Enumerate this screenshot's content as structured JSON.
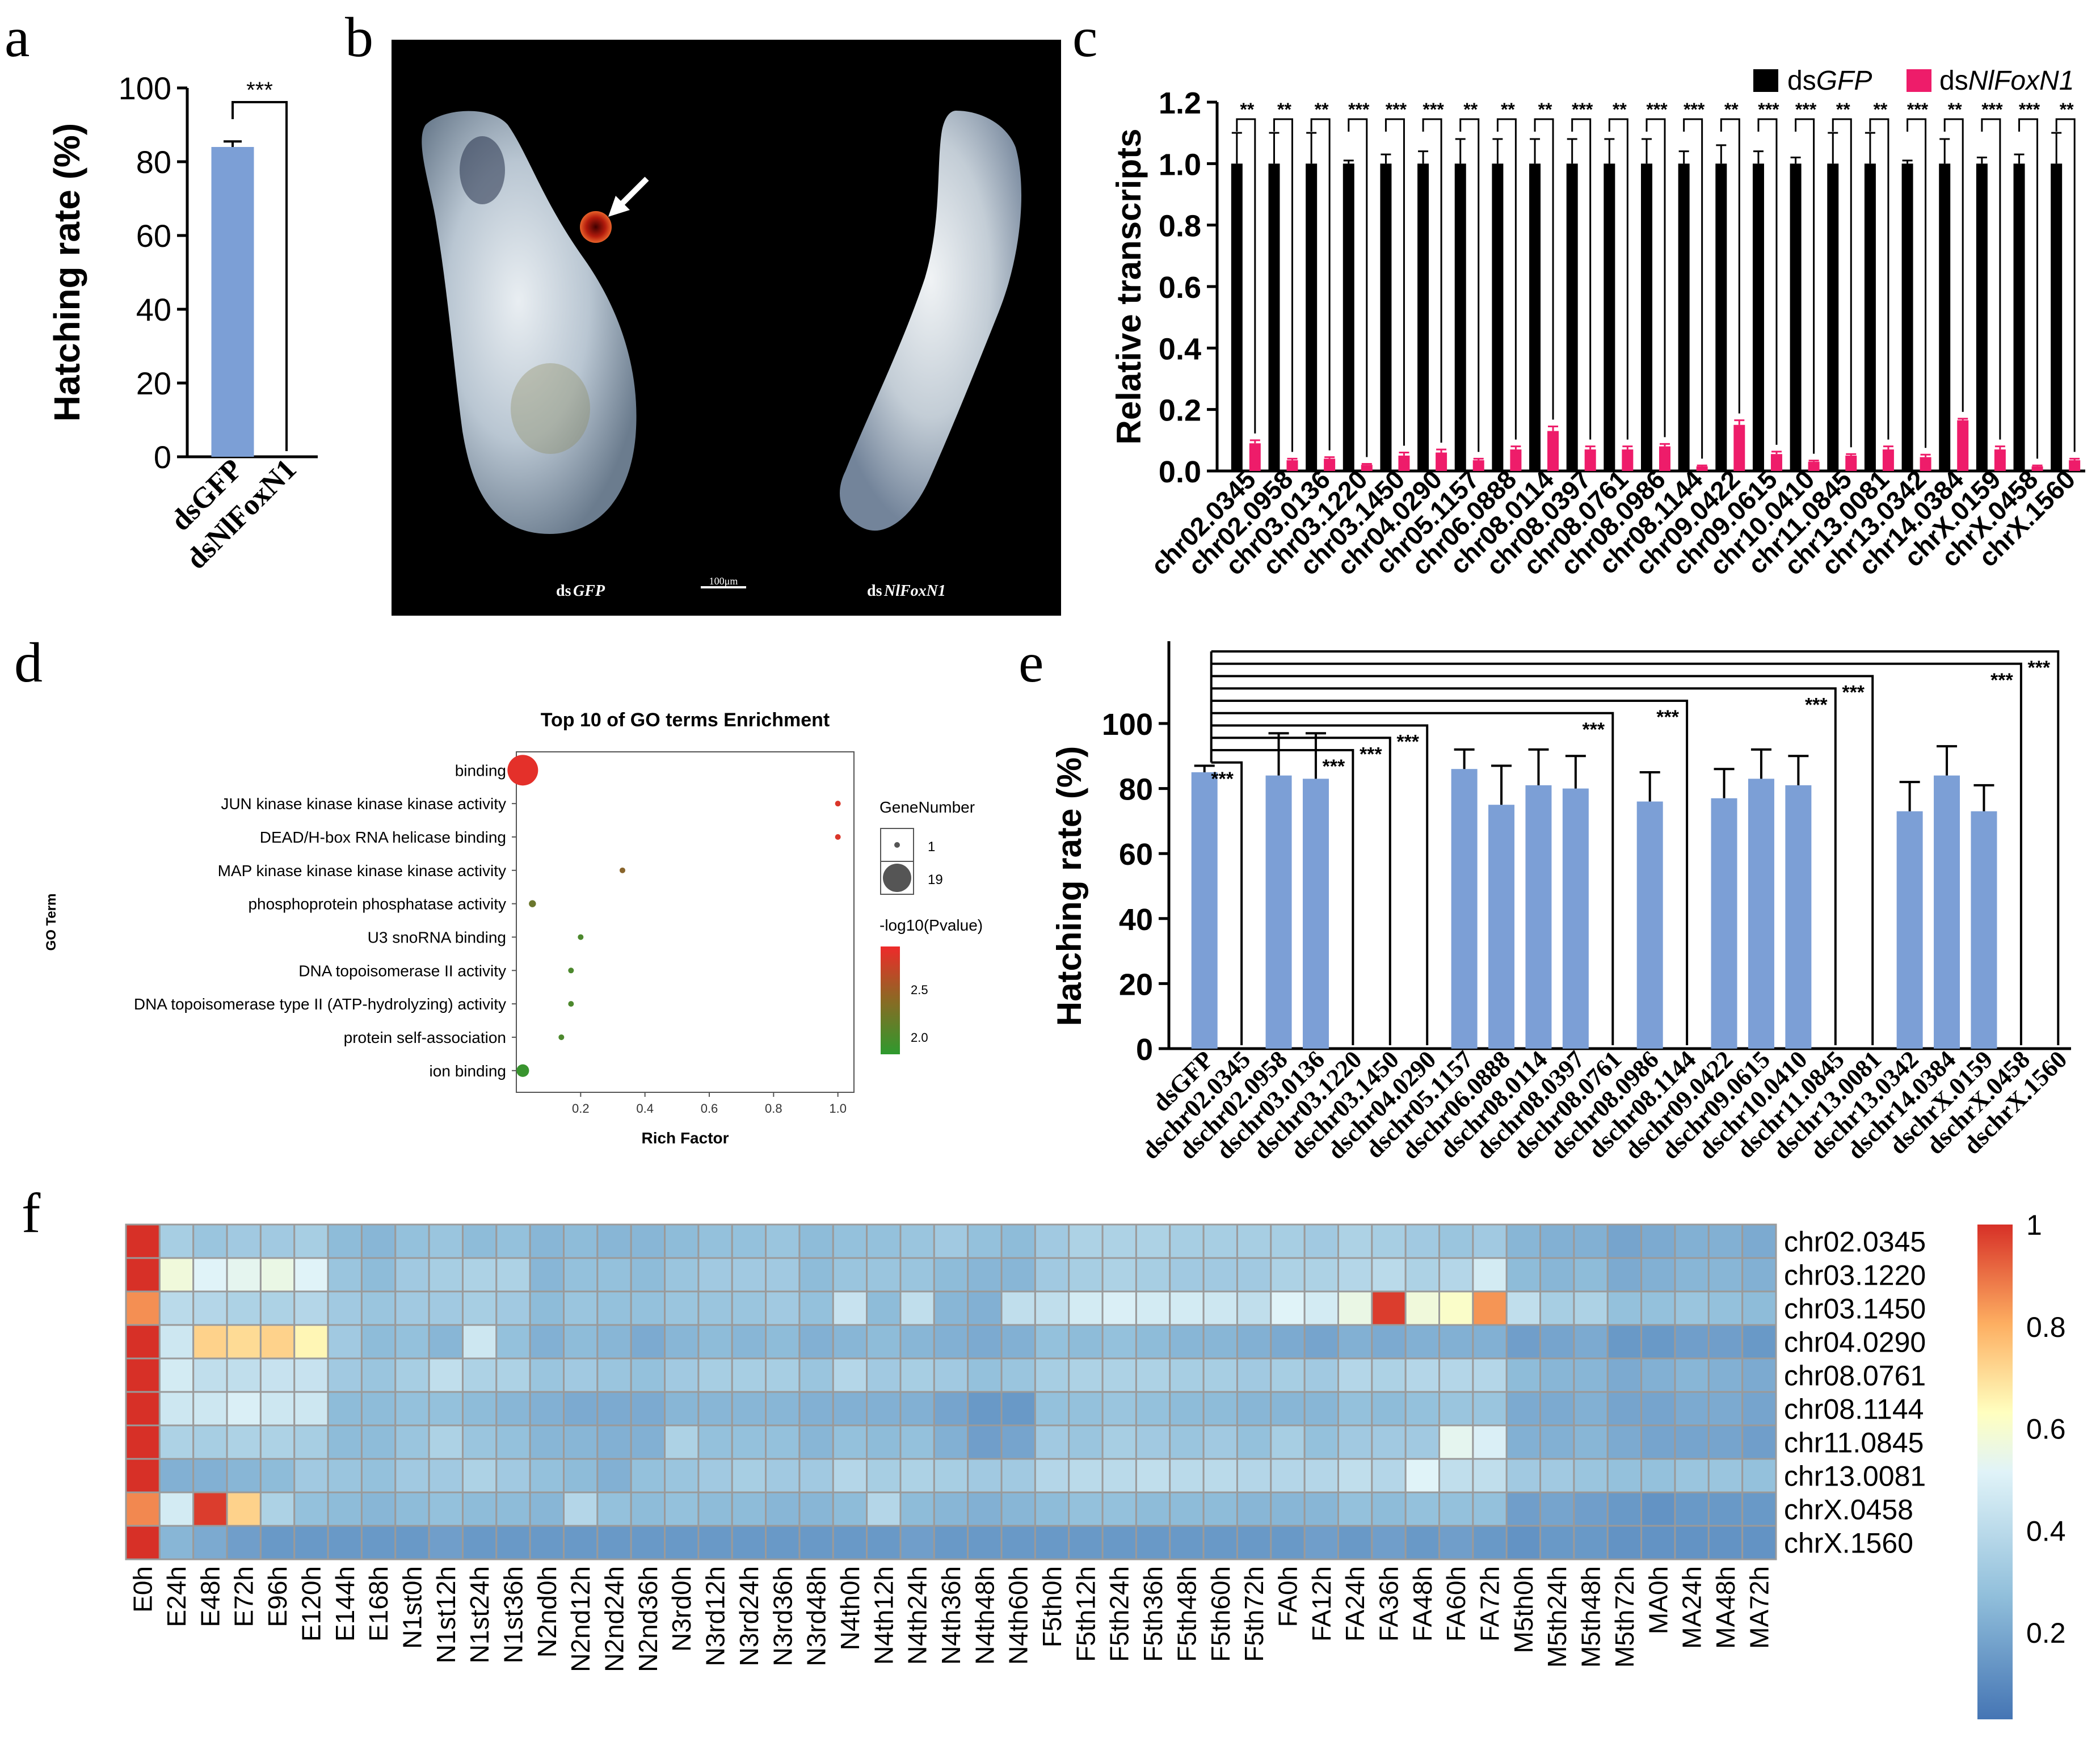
{
  "colors": {
    "bar_blue": "#7c9fd6",
    "black": "#000000",
    "pink": "#ee1c6a",
    "bubble_red": "#ee2a2a",
    "bubble_green": "#2e9a2e",
    "embryo_bg": "#000000",
    "heat_high": "#d73027",
    "heat_mid": "#ffffbf",
    "heat_low": "#4575b4"
  },
  "panel_labels": [
    "a",
    "b",
    "c",
    "d",
    "e",
    "f"
  ],
  "chart_data": [
    {
      "id": "a",
      "type": "bar",
      "categories": [
        "dsGFP",
        "dsNlFoxN1"
      ],
      "values": [
        84,
        0
      ],
      "errors": [
        1.5,
        0
      ],
      "ylabel": "Hatching rate (%)",
      "ylim": [
        0,
        100
      ],
      "yticks": [
        "0",
        "20",
        "40",
        "60",
        "80",
        "100"
      ],
      "significance": "***"
    },
    {
      "id": "b",
      "type": "image",
      "labels": {
        "left": "dsGFP",
        "left_prefix": "ds",
        "left_italic": "GFP",
        "right_prefix": "ds",
        "right_italic": "NlFoxN1",
        "scale": "100μm"
      }
    },
    {
      "id": "c",
      "type": "bar",
      "ylabel": "Relative transcripts",
      "ylim": [
        0,
        1.2
      ],
      "yticks": [
        "0.0",
        "0.2",
        "0.4",
        "0.6",
        "0.8",
        "1.0",
        "1.2"
      ],
      "legend": [
        {
          "prefix": "ds",
          "italic": "GFP"
        },
        {
          "prefix": "ds",
          "italic": "NlFoxN1"
        }
      ],
      "categories": [
        "chr02.0345",
        "chr02.0958",
        "chr03.0136",
        "chr03.1220",
        "chr03.1450",
        "chr04.0290",
        "chr05.1157",
        "chr06.0888",
        "chr08.0114",
        "chr08.0397",
        "chr08.0761",
        "chr08.0986",
        "chr08.1144",
        "chr09.0422",
        "chr09.0615",
        "chr10.0410",
        "chr11.0845",
        "chr13.0081",
        "chr13.0342",
        "chr14.0384",
        "chrX.0159",
        "chrX.0458",
        "chrX.1560"
      ],
      "series": [
        {
          "values": [
            1,
            1,
            1,
            1,
            1,
            1,
            1,
            1,
            1,
            1,
            1,
            1,
            1,
            1,
            1,
            1,
            1,
            1,
            1,
            1,
            1,
            1,
            1
          ],
          "errors": [
            0.1,
            0.1,
            0.1,
            0.01,
            0.03,
            0.04,
            0.08,
            0.08,
            0.08,
            0.08,
            0.08,
            0.08,
            0.04,
            0.06,
            0.04,
            0.02,
            0.1,
            0.1,
            0.01,
            0.08,
            0.02,
            0.03,
            0.1
          ]
        },
        {
          "values": [
            0.09,
            0.035,
            0.04,
            0.02,
            0.05,
            0.06,
            0.035,
            0.07,
            0.13,
            0.07,
            0.07,
            0.08,
            0.015,
            0.15,
            0.055,
            0.03,
            0.05,
            0.07,
            0.045,
            0.165,
            0.07,
            0.015,
            0.035
          ],
          "errors": [
            0.01,
            0.005,
            0.005,
            0.003,
            0.01,
            0.01,
            0.005,
            0.01,
            0.015,
            0.01,
            0.01,
            0.008,
            0.003,
            0.015,
            0.008,
            0.004,
            0.005,
            0.01,
            0.008,
            0.005,
            0.01,
            0.003,
            0.005
          ]
        }
      ],
      "significance": [
        "**",
        "**",
        "**",
        "***",
        "***",
        "***",
        "**",
        "**",
        "**",
        "***",
        "**",
        "***",
        "***",
        "**",
        "***",
        "***",
        "**",
        "**",
        "***",
        "**",
        "***",
        "***",
        "**"
      ]
    },
    {
      "id": "d",
      "type": "scatter",
      "title": "Top 10 of GO terms Enrichment",
      "xlabel": "Rich Factor",
      "ylabel": "GO Term",
      "xlim": [
        0,
        1.05
      ],
      "xticks": [
        "0.2",
        "0.4",
        "0.6",
        "0.8",
        "1.0"
      ],
      "terms": [
        "binding",
        "JUN kinase kinase kinase kinase activity",
        "DEAD/H-box RNA helicase binding",
        "MAP kinase kinase kinase kinase activity",
        "phosphoprotein phosphatase activity",
        "U3 snoRNA binding",
        "DNA topoisomerase II activity",
        "DNA topoisomerase type II (ATP-hydrolyzing) activity",
        "protein self-association",
        "ion binding"
      ],
      "rich_factor": [
        0.02,
        1.0,
        1.0,
        0.33,
        0.05,
        0.2,
        0.17,
        0.17,
        0.14,
        0.02
      ],
      "gene_number": [
        19,
        1,
        1,
        1,
        2,
        1,
        1,
        1,
        1,
        6
      ],
      "neglog10p": [
        2.8,
        2.75,
        2.75,
        2.35,
        2.2,
        2.05,
        2.05,
        2.05,
        2.05,
        1.95
      ],
      "size_legend_title": "GeneNumber",
      "size_legend": [
        "1",
        "19"
      ],
      "color_legend_title": "-log10(Pvalue)",
      "color_legend": [
        "2.5",
        "2.0"
      ]
    },
    {
      "id": "e",
      "type": "bar",
      "ylabel": "Hatching rate (%)",
      "ylim": [
        0,
        100
      ],
      "yticks": [
        "0",
        "20",
        "40",
        "60",
        "80",
        "100"
      ],
      "categories": [
        "dsGFP",
        "dschr02.0345",
        "dschr02.0958",
        "dschr03.0136",
        "dschr03.1220",
        "dschr03.1450",
        "dschr04.0290",
        "dschr05.1157",
        "dschr06.0888",
        "dschr08.0114",
        "dschr08.0397",
        "dschr08.0761",
        "dschr08.0986",
        "dschr08.1144",
        "dschr09.0422",
        "dschr09.0615",
        "dschr10.0410",
        "dschr11.0845",
        "dschr13.0081",
        "dschr13.0342",
        "dschr14.0384",
        "dschrX.0159",
        "dschrX.0458",
        "dschrX.1560"
      ],
      "values": [
        85,
        0,
        84,
        83,
        0,
        0,
        0,
        86,
        75,
        81,
        80,
        0,
        76,
        0,
        77,
        83,
        81,
        0,
        0,
        73,
        84,
        73,
        0,
        0
      ],
      "errors": [
        2,
        0,
        13,
        14,
        0,
        0,
        0,
        6,
        12,
        11,
        10,
        0,
        9,
        0,
        9,
        9,
        9,
        0,
        0,
        9,
        9,
        8,
        0,
        0
      ],
      "significance": "***"
    },
    {
      "id": "f",
      "type": "heatmap",
      "rows": [
        "chr02.0345",
        "chr03.1220",
        "chr03.1450",
        "chr04.0290",
        "chr08.0761",
        "chr08.1144",
        "chr11.0845",
        "chr13.0081",
        "chrX.0458",
        "chrX.1560"
      ],
      "columns": [
        "E0h",
        "E24h",
        "E48h",
        "E72h",
        "E96h",
        "E120h",
        "E144h",
        "E168h",
        "N1st0h",
        "N1st12h",
        "N1st24h",
        "N1st36h",
        "N2nd0h",
        "N2nd12h",
        "N2nd24h",
        "N2nd36h",
        "N3rd0h",
        "N3rd12h",
        "N3rd24h",
        "N3rd36h",
        "N3rd48h",
        "N4th0h",
        "N4th12h",
        "N4th24h",
        "N4th36h",
        "N4th48h",
        "N4th60h",
        "F5th0h",
        "F5th12h",
        "F5th24h",
        "F5th36h",
        "F5th48h",
        "F5th60h",
        "F5th72h",
        "FA0h",
        "FA12h",
        "FA24h",
        "FA36h",
        "FA48h",
        "FA60h",
        "FA72h",
        "M5th0h",
        "M5th24h",
        "M5th48h",
        "M5th72h",
        "MA0h",
        "MA24h",
        "MA48h",
        "MA72h"
      ],
      "values": [
        [
          1.0,
          0.32,
          0.28,
          0.3,
          0.3,
          0.32,
          0.24,
          0.22,
          0.26,
          0.28,
          0.24,
          0.26,
          0.22,
          0.24,
          0.22,
          0.22,
          0.24,
          0.26,
          0.26,
          0.28,
          0.24,
          0.26,
          0.26,
          0.28,
          0.3,
          0.26,
          0.24,
          0.3,
          0.34,
          0.34,
          0.34,
          0.32,
          0.32,
          0.32,
          0.32,
          0.3,
          0.34,
          0.32,
          0.3,
          0.28,
          0.3,
          0.22,
          0.2,
          0.2,
          0.16,
          0.18,
          0.2,
          0.2,
          0.18
        ],
        [
          1.0,
          0.56,
          0.5,
          0.52,
          0.54,
          0.5,
          0.28,
          0.24,
          0.3,
          0.32,
          0.34,
          0.34,
          0.22,
          0.26,
          0.26,
          0.24,
          0.28,
          0.3,
          0.3,
          0.3,
          0.24,
          0.28,
          0.28,
          0.28,
          0.24,
          0.22,
          0.22,
          0.3,
          0.32,
          0.34,
          0.32,
          0.3,
          0.3,
          0.3,
          0.34,
          0.34,
          0.36,
          0.38,
          0.34,
          0.36,
          0.46,
          0.24,
          0.22,
          0.24,
          0.18,
          0.2,
          0.22,
          0.22,
          0.2
        ],
        [
          0.85,
          0.38,
          0.36,
          0.34,
          0.34,
          0.36,
          0.3,
          0.28,
          0.3,
          0.3,
          0.32,
          0.3,
          0.24,
          0.28,
          0.26,
          0.26,
          0.28,
          0.28,
          0.28,
          0.3,
          0.26,
          0.42,
          0.24,
          0.4,
          0.22,
          0.2,
          0.4,
          0.4,
          0.46,
          0.48,
          0.46,
          0.46,
          0.44,
          0.4,
          0.5,
          0.46,
          0.54,
          0.98,
          0.56,
          0.6,
          0.84,
          0.4,
          0.32,
          0.34,
          0.26,
          0.26,
          0.28,
          0.26,
          0.24
        ],
        [
          1.0,
          0.44,
          0.72,
          0.7,
          0.72,
          0.64,
          0.3,
          0.24,
          0.26,
          0.22,
          0.44,
          0.26,
          0.2,
          0.24,
          0.22,
          0.18,
          0.22,
          0.24,
          0.22,
          0.24,
          0.2,
          0.22,
          0.24,
          0.22,
          0.2,
          0.18,
          0.2,
          0.26,
          0.24,
          0.26,
          0.24,
          0.22,
          0.22,
          0.2,
          0.18,
          0.16,
          0.2,
          0.18,
          0.2,
          0.2,
          0.2,
          0.14,
          0.16,
          0.18,
          0.12,
          0.12,
          0.14,
          0.14,
          0.12
        ],
        [
          1.0,
          0.46,
          0.4,
          0.4,
          0.42,
          0.42,
          0.3,
          0.28,
          0.32,
          0.4,
          0.34,
          0.34,
          0.28,
          0.3,
          0.28,
          0.26,
          0.3,
          0.32,
          0.32,
          0.32,
          0.28,
          0.36,
          0.3,
          0.32,
          0.3,
          0.26,
          0.28,
          0.32,
          0.34,
          0.34,
          0.34,
          0.32,
          0.32,
          0.3,
          0.32,
          0.3,
          0.36,
          0.34,
          0.36,
          0.36,
          0.36,
          0.24,
          0.22,
          0.22,
          0.18,
          0.2,
          0.22,
          0.2,
          0.18
        ],
        [
          1.0,
          0.44,
          0.44,
          0.48,
          0.44,
          0.44,
          0.24,
          0.24,
          0.26,
          0.26,
          0.24,
          0.22,
          0.2,
          0.18,
          0.18,
          0.18,
          0.22,
          0.22,
          0.22,
          0.22,
          0.2,
          0.2,
          0.2,
          0.2,
          0.16,
          0.12,
          0.12,
          0.26,
          0.26,
          0.28,
          0.26,
          0.24,
          0.24,
          0.22,
          0.22,
          0.22,
          0.26,
          0.24,
          0.26,
          0.28,
          0.28,
          0.18,
          0.18,
          0.2,
          0.16,
          0.16,
          0.18,
          0.18,
          0.16
        ],
        [
          1.0,
          0.34,
          0.32,
          0.34,
          0.34,
          0.32,
          0.24,
          0.24,
          0.28,
          0.34,
          0.28,
          0.26,
          0.22,
          0.22,
          0.2,
          0.2,
          0.34,
          0.26,
          0.26,
          0.26,
          0.22,
          0.26,
          0.24,
          0.26,
          0.2,
          0.14,
          0.16,
          0.3,
          0.28,
          0.32,
          0.3,
          0.28,
          0.3,
          0.26,
          0.32,
          0.26,
          0.3,
          0.3,
          0.3,
          0.52,
          0.48,
          0.2,
          0.2,
          0.22,
          0.18,
          0.16,
          0.16,
          0.16,
          0.14
        ],
        [
          1.0,
          0.2,
          0.2,
          0.22,
          0.24,
          0.3,
          0.28,
          0.26,
          0.3,
          0.3,
          0.34,
          0.3,
          0.26,
          0.24,
          0.2,
          0.26,
          0.28,
          0.3,
          0.32,
          0.3,
          0.3,
          0.36,
          0.32,
          0.34,
          0.32,
          0.3,
          0.3,
          0.36,
          0.38,
          0.38,
          0.4,
          0.38,
          0.38,
          0.36,
          0.36,
          0.36,
          0.4,
          0.36,
          0.5,
          0.4,
          0.4,
          0.3,
          0.3,
          0.28,
          0.26,
          0.26,
          0.28,
          0.28,
          0.26
        ],
        [
          0.86,
          0.46,
          0.98,
          0.72,
          0.34,
          0.26,
          0.24,
          0.22,
          0.24,
          0.26,
          0.24,
          0.24,
          0.22,
          0.36,
          0.26,
          0.24,
          0.26,
          0.24,
          0.24,
          0.22,
          0.22,
          0.24,
          0.36,
          0.24,
          0.22,
          0.2,
          0.22,
          0.24,
          0.26,
          0.26,
          0.24,
          0.24,
          0.24,
          0.22,
          0.22,
          0.22,
          0.26,
          0.24,
          0.26,
          0.26,
          0.26,
          0.14,
          0.16,
          0.14,
          0.12,
          0.1,
          0.12,
          0.12,
          0.12
        ],
        [
          1.0,
          0.22,
          0.18,
          0.14,
          0.12,
          0.12,
          0.12,
          0.12,
          0.12,
          0.14,
          0.12,
          0.12,
          0.12,
          0.12,
          0.12,
          0.12,
          0.12,
          0.12,
          0.12,
          0.12,
          0.12,
          0.12,
          0.12,
          0.14,
          0.12,
          0.12,
          0.12,
          0.12,
          0.12,
          0.12,
          0.12,
          0.12,
          0.12,
          0.12,
          0.12,
          0.14,
          0.12,
          0.14,
          0.12,
          0.14,
          0.12,
          0.1,
          0.12,
          0.12,
          0.1,
          0.1,
          0.1,
          0.1,
          0.1
        ]
      ],
      "colorbar_ticks": [
        "1",
        "0.8",
        "0.6",
        "0.4",
        "0.2"
      ]
    }
  ]
}
